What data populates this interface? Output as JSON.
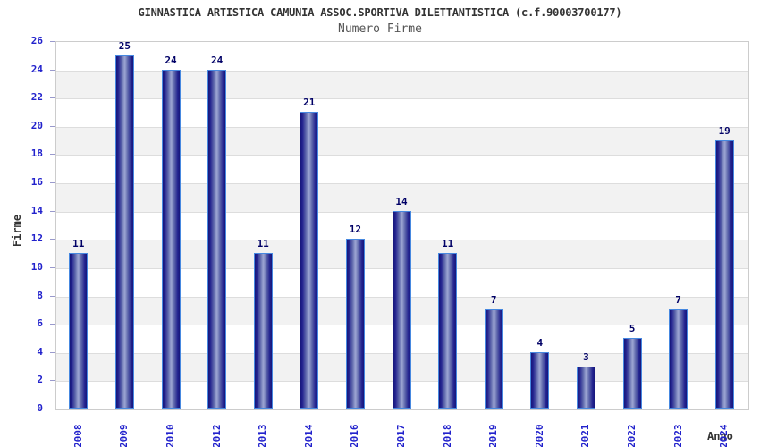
{
  "header": {
    "title": "GINNASTICA ARTISTICA CAMUNIA ASSOC.SPORTIVA DILETTANTISTICA (c.f.90003700177)",
    "subtitle": "Numero Firme"
  },
  "chart_data": {
    "type": "bar",
    "title": "GINNASTICA ARTISTICA CAMUNIA ASSOC.SPORTIVA DILETTANTISTICA (c.f.90003700177)",
    "subtitle": "Numero Firme",
    "xlabel": "Anno",
    "ylabel": "Firme",
    "categories": [
      "2008",
      "2009",
      "2010",
      "2012",
      "2013",
      "2014",
      "2016",
      "2017",
      "2018",
      "2019",
      "2020",
      "2021",
      "2022",
      "2023",
      "2024"
    ],
    "values": [
      11,
      25,
      24,
      24,
      11,
      21,
      12,
      14,
      11,
      7,
      4,
      3,
      5,
      7,
      19
    ],
    "ylim": [
      0,
      26
    ],
    "ytick_step": 2,
    "yticks": [
      0,
      2,
      4,
      6,
      8,
      10,
      12,
      14,
      16,
      18,
      20,
      22,
      24,
      26
    ],
    "grid": "horizontal-bands-alternating",
    "legend": "none",
    "value_labels": "above-bars",
    "colors": {
      "bar_edge_dark": "#16167a",
      "bar_mid": "#23238f",
      "bar_center_light": "#98a1d0",
      "bar_border": "#4688e0",
      "axis_tick_label": "#2222cc",
      "value_label": "#000066",
      "band_gray": "#f2f2f2",
      "band_white": "#ffffff",
      "grid_line": "#dddddd",
      "plot_border": "#cccccc",
      "title_text": "#333333",
      "subtitle_text": "#555555"
    }
  }
}
